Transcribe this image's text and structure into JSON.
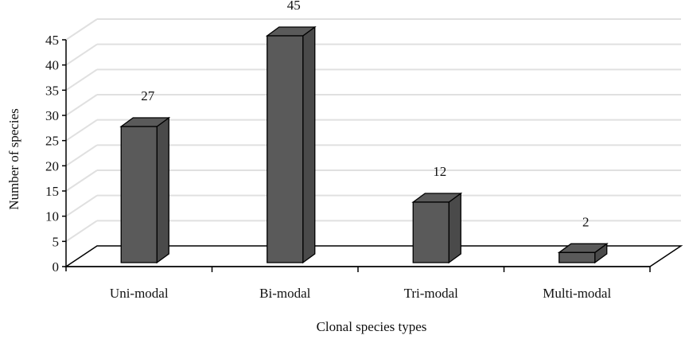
{
  "chart_data": {
    "type": "bar",
    "categories": [
      "Uni-modal",
      "Bi-modal",
      "Tri-modal",
      "Multi-modal"
    ],
    "values": [
      27,
      45,
      12,
      2
    ],
    "data_labels": [
      "27",
      "45",
      "12",
      "2"
    ],
    "xlabel": "Clonal species types",
    "ylabel": "Number of species",
    "ylim": [
      0,
      45
    ],
    "yticks": [
      "0",
      "5",
      "10",
      "15",
      "20",
      "25",
      "30",
      "35",
      "40",
      "45"
    ],
    "grid": true,
    "three_d": true,
    "bar_color": "#5a5a5a",
    "bar_side_color": "#4a4a4a"
  }
}
